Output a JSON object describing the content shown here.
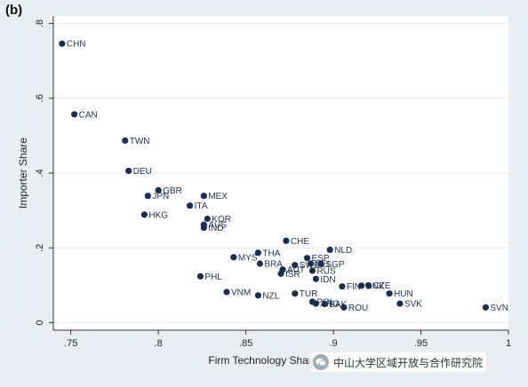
{
  "panel_label": "(b)",
  "chart_data": {
    "type": "scatter",
    "title": "",
    "xlabel": "Firm Technology Share",
    "ylabel": "Importer Share",
    "xlim": [
      0.74,
      1.0
    ],
    "ylim": [
      -0.02,
      0.82
    ],
    "xticks": [
      0.75,
      0.8,
      0.85,
      0.9,
      0.95,
      1.0
    ],
    "xtick_labels": [
      ".75",
      ".8",
      ".85",
      ".9",
      ".95",
      "1"
    ],
    "yticks": [
      0,
      0.2,
      0.4,
      0.6,
      0.8
    ],
    "ytick_labels": [
      "0",
      ".2",
      ".4",
      ".6",
      ".8"
    ],
    "grid": true,
    "marker_color": "#1a2f50",
    "points": [
      {
        "label": "CHN",
        "x": 0.745,
        "y": 0.746
      },
      {
        "label": "CAN",
        "x": 0.752,
        "y": 0.557
      },
      {
        "label": "TWN",
        "x": 0.781,
        "y": 0.487
      },
      {
        "label": "DEU",
        "x": 0.783,
        "y": 0.406
      },
      {
        "label": "GBR",
        "x": 0.8,
        "y": 0.354
      },
      {
        "label": "JPN",
        "x": 0.794,
        "y": 0.339
      },
      {
        "label": "MEX",
        "x": 0.826,
        "y": 0.339
      },
      {
        "label": "ITA",
        "x": 0.818,
        "y": 0.313
      },
      {
        "label": "HKG",
        "x": 0.792,
        "y": 0.289
      },
      {
        "label": "KOR",
        "x": 0.828,
        "y": 0.278
      },
      {
        "label": "AUS",
        "x": 0.826,
        "y": 0.262
      },
      {
        "label": "IND",
        "x": 0.826,
        "y": 0.254
      },
      {
        "label": "CHE",
        "x": 0.873,
        "y": 0.219
      },
      {
        "label": "NLD",
        "x": 0.898,
        "y": 0.195
      },
      {
        "label": "THA",
        "x": 0.857,
        "y": 0.187
      },
      {
        "label": "MYS",
        "x": 0.843,
        "y": 0.175
      },
      {
        "label": "ESP",
        "x": 0.885,
        "y": 0.173
      },
      {
        "label": "BRA",
        "x": 0.858,
        "y": 0.158
      },
      {
        "label": "SWE",
        "x": 0.878,
        "y": 0.154
      },
      {
        "label": "BEL",
        "x": 0.887,
        "y": 0.158
      },
      {
        "label": "SGP",
        "x": 0.893,
        "y": 0.157
      },
      {
        "label": "AUT",
        "x": 0.871,
        "y": 0.142
      },
      {
        "label": "RUS",
        "x": 0.888,
        "y": 0.139
      },
      {
        "label": "ISR",
        "x": 0.87,
        "y": 0.131
      },
      {
        "label": "IDN",
        "x": 0.89,
        "y": 0.117
      },
      {
        "label": "PHL",
        "x": 0.824,
        "y": 0.124
      },
      {
        "label": "FIN",
        "x": 0.905,
        "y": 0.097
      },
      {
        "label": "DNK",
        "x": 0.916,
        "y": 0.099
      },
      {
        "label": "CZE",
        "x": 0.92,
        "y": 0.1
      },
      {
        "label": "HUN",
        "x": 0.932,
        "y": 0.078
      },
      {
        "label": "VNM",
        "x": 0.839,
        "y": 0.082
      },
      {
        "label": "NZL",
        "x": 0.857,
        "y": 0.073
      },
      {
        "label": "TUR",
        "x": 0.878,
        "y": 0.078
      },
      {
        "label": "SVK",
        "x": 0.938,
        "y": 0.051
      },
      {
        "label": "POL",
        "x": 0.888,
        "y": 0.056
      },
      {
        "label": "ARG",
        "x": 0.89,
        "y": 0.051
      },
      {
        "label": "BAK",
        "x": 0.895,
        "y": 0.05
      },
      {
        "label": "ROU",
        "x": 0.906,
        "y": 0.041
      },
      {
        "label": "SVN",
        "x": 0.987,
        "y": 0.041
      }
    ]
  },
  "watermark": {
    "icon": "wechat-icon",
    "text": "中山大学区域开放与合作研究院"
  }
}
